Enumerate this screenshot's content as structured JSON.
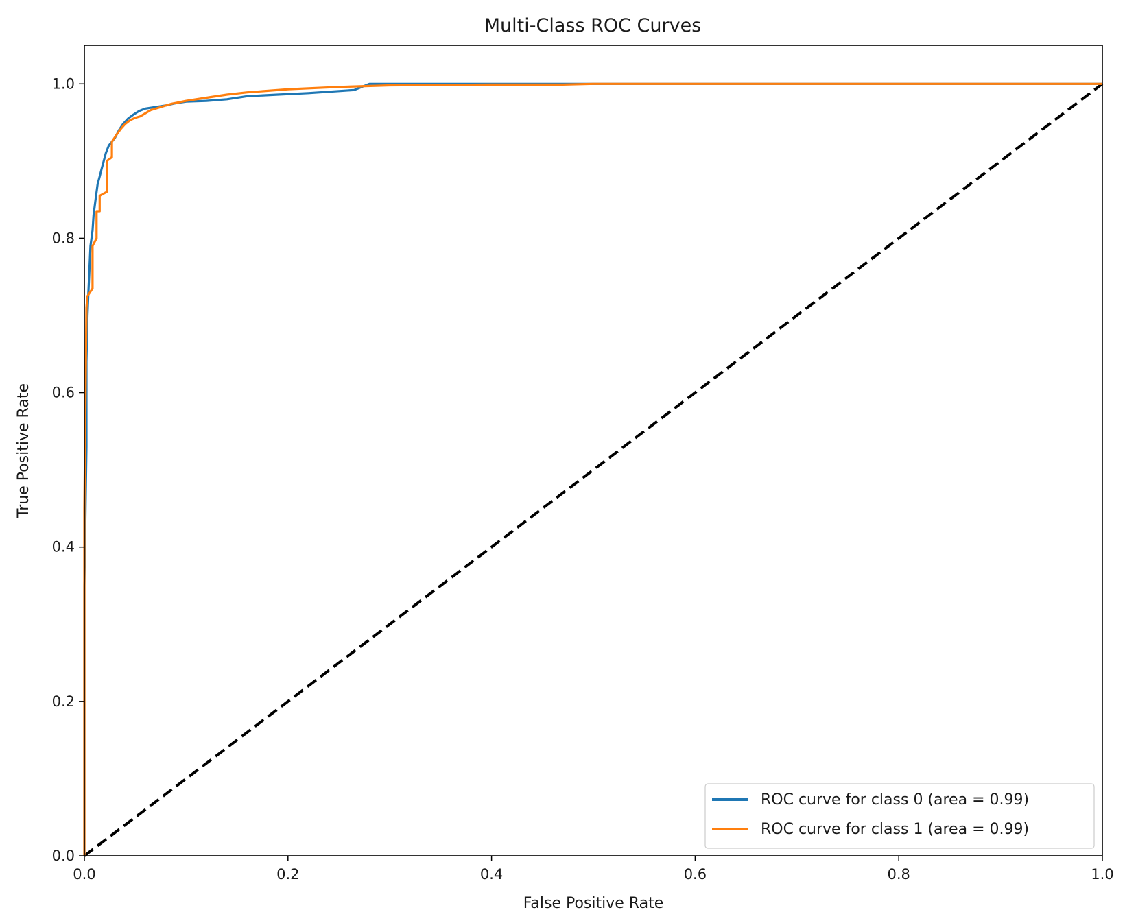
{
  "chart_data": {
    "type": "line",
    "title": "Multi-Class ROC Curves",
    "xlabel": "False Positive Rate",
    "ylabel": "True Positive Rate",
    "xlim": [
      0.0,
      1.0
    ],
    "ylim": [
      0.0,
      1.05
    ],
    "xticks": [
      "0.0",
      "0.2",
      "0.4",
      "0.6",
      "0.8",
      "1.0"
    ],
    "yticks": [
      "0.0",
      "0.2",
      "0.4",
      "0.6",
      "0.8",
      "1.0"
    ],
    "grid": false,
    "legend_position": "lower right",
    "series": [
      {
        "name": "ROC curve for class 0 (area = 0.99)",
        "color": "#1f77b4",
        "x": [
          0.0,
          0.0,
          0.002,
          0.002,
          0.003,
          0.004,
          0.005,
          0.006,
          0.008,
          0.009,
          0.011,
          0.013,
          0.015,
          0.017,
          0.019,
          0.021,
          0.024,
          0.027,
          0.03,
          0.034,
          0.038,
          0.043,
          0.048,
          0.054,
          0.06,
          0.07,
          0.08,
          0.09,
          0.1,
          0.12,
          0.14,
          0.16,
          0.19,
          0.22,
          0.265,
          0.28,
          0.35,
          0.5,
          0.7,
          0.85,
          1.0
        ],
        "y": [
          0.0,
          0.35,
          0.53,
          0.64,
          0.7,
          0.73,
          0.76,
          0.79,
          0.81,
          0.83,
          0.85,
          0.87,
          0.88,
          0.89,
          0.9,
          0.91,
          0.92,
          0.925,
          0.93,
          0.94,
          0.948,
          0.955,
          0.96,
          0.965,
          0.968,
          0.97,
          0.972,
          0.975,
          0.977,
          0.978,
          0.98,
          0.984,
          0.986,
          0.988,
          0.992,
          1.0,
          1.0,
          1.0,
          1.0,
          1.0,
          1.0
        ]
      },
      {
        "name": "ROC curve for class 1 (area = 0.99)",
        "color": "#ff7f0e",
        "x": [
          0.0,
          0.0,
          0.002,
          0.003,
          0.008,
          0.008,
          0.012,
          0.012,
          0.015,
          0.015,
          0.022,
          0.022,
          0.027,
          0.027,
          0.032,
          0.036,
          0.04,
          0.045,
          0.05,
          0.055,
          0.06,
          0.065,
          0.075,
          0.085,
          0.1,
          0.12,
          0.14,
          0.16,
          0.2,
          0.25,
          0.3,
          0.4,
          0.47,
          0.5,
          0.64,
          0.8,
          1.0
        ],
        "y": [
          0.0,
          0.45,
          0.71,
          0.725,
          0.735,
          0.79,
          0.8,
          0.835,
          0.835,
          0.855,
          0.86,
          0.9,
          0.905,
          0.925,
          0.935,
          0.942,
          0.948,
          0.953,
          0.956,
          0.958,
          0.962,
          0.966,
          0.97,
          0.974,
          0.978,
          0.982,
          0.986,
          0.989,
          0.993,
          0.996,
          0.998,
          0.999,
          0.999,
          1.0,
          1.0,
          1.0,
          1.0
        ]
      },
      {
        "name": "",
        "color": "#000000",
        "x": [
          0.0,
          1.0
        ],
        "y": [
          0.0,
          1.0
        ]
      }
    ]
  }
}
